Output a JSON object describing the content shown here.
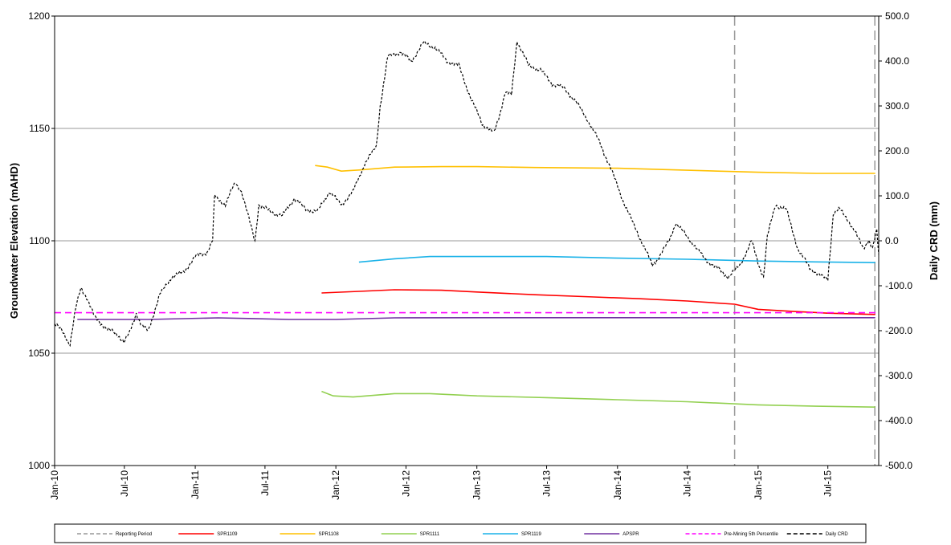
{
  "chart_data": {
    "type": "line",
    "title": "",
    "xlabel": "",
    "ylabel": "Groundwater Elevation (mAHD)",
    "y2label": "Daily CRD (mm)",
    "xlim": [
      "2010-01-01",
      "2015-11-10"
    ],
    "ylim": [
      1000,
      1200
    ],
    "y2lim": [
      -500,
      500
    ],
    "yticks": [
      "1000",
      "1050",
      "1100",
      "1150",
      "1200"
    ],
    "y2ticks": [
      "-500.0",
      "-400.0",
      "-300.0",
      "-200.0",
      "-100.0",
      "0.0",
      "100.0",
      "200.0",
      "300.0",
      "400.0",
      "500.0"
    ],
    "xticks": [
      {
        "label": "Jan-10",
        "date": "2010-01-01"
      },
      {
        "label": "Jul-10",
        "date": "2010-07-01"
      },
      {
        "label": "Jan-11",
        "date": "2011-01-01"
      },
      {
        "label": "Jul-11",
        "date": "2011-07-01"
      },
      {
        "label": "Jan-12",
        "date": "2012-01-01"
      },
      {
        "label": "Jul-12",
        "date": "2012-07-01"
      },
      {
        "label": "Jan-13",
        "date": "2013-01-01"
      },
      {
        "label": "Jul-13",
        "date": "2013-07-01"
      },
      {
        "label": "Jan-14",
        "date": "2014-01-01"
      },
      {
        "label": "Jul-14",
        "date": "2014-07-01"
      },
      {
        "label": "Jan-15",
        "date": "2015-01-01"
      },
      {
        "label": "Jul-15",
        "date": "2015-07-01"
      }
    ],
    "grid": "horizontal",
    "legend_position": "bottom",
    "reporting_period": [
      "2014-11-01",
      "2015-10-31"
    ],
    "series": [
      {
        "name": "Reporting Period",
        "color": "#999999",
        "style": "dashed",
        "axis": "left",
        "points": []
      },
      {
        "name": "SPR1109",
        "color": "#ff0000",
        "style": "solid",
        "axis": "left",
        "points": [
          [
            "2011-11-25",
            1076.8
          ],
          [
            "2012-03-01",
            1077.5
          ],
          [
            "2012-06-01",
            1078.2
          ],
          [
            "2012-10-01",
            1078.0
          ],
          [
            "2013-01-01",
            1077.2
          ],
          [
            "2013-06-01",
            1076.0
          ],
          [
            "2013-11-01",
            1075.0
          ],
          [
            "2014-03-01",
            1074.2
          ],
          [
            "2014-07-01",
            1073.2
          ],
          [
            "2014-11-01",
            1071.8
          ],
          [
            "2015-01-01",
            1069.5
          ],
          [
            "2015-04-01",
            1068.6
          ],
          [
            "2015-07-01",
            1067.8
          ],
          [
            "2015-11-01",
            1067.2
          ]
        ]
      },
      {
        "name": "SPR1108",
        "color": "#ffc000",
        "style": "solid",
        "axis": "left",
        "points": [
          [
            "2011-11-08",
            1133.5
          ],
          [
            "2011-12-10",
            1132.8
          ],
          [
            "2012-01-15",
            1131.0
          ],
          [
            "2012-03-01",
            1131.5
          ],
          [
            "2012-06-01",
            1132.8
          ],
          [
            "2012-10-01",
            1133.0
          ],
          [
            "2013-01-01",
            1133.0
          ],
          [
            "2013-06-01",
            1132.6
          ],
          [
            "2014-01-01",
            1132.3
          ],
          [
            "2014-07-01",
            1131.4
          ],
          [
            "2015-01-01",
            1130.5
          ],
          [
            "2015-06-01",
            1130.0
          ],
          [
            "2015-11-01",
            1130.0
          ]
        ]
      },
      {
        "name": "SPR1111",
        "color": "#92d050",
        "style": "solid",
        "axis": "left",
        "points": [
          [
            "2011-11-25",
            1033.0
          ],
          [
            "2011-12-25",
            1031.0
          ],
          [
            "2012-02-15",
            1030.5
          ],
          [
            "2012-06-01",
            1032.0
          ],
          [
            "2012-09-01",
            1032.0
          ],
          [
            "2013-01-01",
            1031.0
          ],
          [
            "2013-07-01",
            1030.2
          ],
          [
            "2014-01-01",
            1029.3
          ],
          [
            "2014-07-01",
            1028.4
          ],
          [
            "2015-01-01",
            1027.0
          ],
          [
            "2015-06-01",
            1026.4
          ],
          [
            "2015-11-01",
            1026.0
          ]
        ]
      },
      {
        "name": "SPR1119",
        "color": "#1ab2e8",
        "style": "solid",
        "axis": "left",
        "points": [
          [
            "2012-03-01",
            1090.5
          ],
          [
            "2012-06-01",
            1092.0
          ],
          [
            "2012-09-01",
            1093.0
          ],
          [
            "2013-01-01",
            1093.0
          ],
          [
            "2013-07-01",
            1093.0
          ],
          [
            "2014-01-01",
            1092.3
          ],
          [
            "2014-07-01",
            1091.8
          ],
          [
            "2015-01-01",
            1091.0
          ],
          [
            "2015-06-01",
            1090.6
          ],
          [
            "2015-11-01",
            1090.3
          ]
        ]
      },
      {
        "name": "APSPR",
        "color": "#7030a0",
        "style": "solid",
        "axis": "left",
        "points": [
          [
            "2010-03-01",
            1065.0
          ],
          [
            "2010-09-01",
            1065.0
          ],
          [
            "2011-03-01",
            1065.7
          ],
          [
            "2011-06-01",
            1065.4
          ],
          [
            "2011-09-01",
            1065.0
          ],
          [
            "2012-01-01",
            1065.0
          ],
          [
            "2012-06-01",
            1065.7
          ],
          [
            "2013-01-01",
            1065.8
          ],
          [
            "2014-01-01",
            1065.8
          ],
          [
            "2015-01-01",
            1065.8
          ],
          [
            "2015-11-01",
            1065.8
          ]
        ]
      },
      {
        "name": "Pre-Mining 5th Percentile",
        "color": "#ff00ff",
        "style": "dashed",
        "axis": "left",
        "points": [
          [
            "2010-01-01",
            1068.0
          ],
          [
            "2015-11-10",
            1068.0
          ]
        ]
      },
      {
        "name": "Daily CRD",
        "color": "#000000",
        "style": "dashed",
        "axis": "right",
        "points": [
          [
            "2010-01-01",
            -185
          ],
          [
            "2010-01-20",
            -200
          ],
          [
            "2010-02-10",
            -230
          ],
          [
            "2010-02-25",
            -150
          ],
          [
            "2010-03-10",
            -105
          ],
          [
            "2010-03-25",
            -125
          ],
          [
            "2010-04-15",
            -170
          ],
          [
            "2010-05-15",
            -195
          ],
          [
            "2010-06-15",
            -210
          ],
          [
            "2010-06-30",
            -225
          ],
          [
            "2010-07-15",
            -205
          ],
          [
            "2010-08-01",
            -160
          ],
          [
            "2010-08-15",
            -190
          ],
          [
            "2010-09-01",
            -200
          ],
          [
            "2010-10-01",
            -120
          ],
          [
            "2010-11-01",
            -80
          ],
          [
            "2010-12-01",
            -70
          ],
          [
            "2011-01-01",
            -35
          ],
          [
            "2011-02-01",
            -25
          ],
          [
            "2011-02-15",
            0
          ],
          [
            "2011-02-20",
            100
          ],
          [
            "2011-03-20",
            80
          ],
          [
            "2011-04-15",
            130
          ],
          [
            "2011-05-01",
            110
          ],
          [
            "2011-05-20",
            50
          ],
          [
            "2011-06-05",
            0
          ],
          [
            "2011-06-15",
            80
          ],
          [
            "2011-07-15",
            65
          ],
          [
            "2011-08-15",
            55
          ],
          [
            "2011-09-15",
            95
          ],
          [
            "2011-10-15",
            70
          ],
          [
            "2011-11-15",
            65
          ],
          [
            "2011-12-15",
            110
          ],
          [
            "2012-01-15",
            80
          ],
          [
            "2012-02-15",
            110
          ],
          [
            "2012-03-15",
            170
          ],
          [
            "2012-04-15",
            210
          ],
          [
            "2012-04-25",
            300
          ],
          [
            "2012-05-15",
            410
          ],
          [
            "2012-06-15",
            420
          ],
          [
            "2012-07-15",
            400
          ],
          [
            "2012-08-15",
            440
          ],
          [
            "2012-09-15",
            430
          ],
          [
            "2012-10-15",
            400
          ],
          [
            "2012-11-15",
            390
          ],
          [
            "2012-12-15",
            320
          ],
          [
            "2013-01-15",
            260
          ],
          [
            "2013-02-15",
            240
          ],
          [
            "2013-03-01",
            280
          ],
          [
            "2013-03-15",
            330
          ],
          [
            "2013-04-01",
            325
          ],
          [
            "2013-04-15",
            445
          ],
          [
            "2013-05-15",
            390
          ],
          [
            "2013-06-15",
            380
          ],
          [
            "2013-07-15",
            350
          ],
          [
            "2013-08-15",
            340
          ],
          [
            "2013-09-15",
            310
          ],
          [
            "2013-10-15",
            270
          ],
          [
            "2013-11-15",
            220
          ],
          [
            "2013-12-15",
            160
          ],
          [
            "2014-01-15",
            90
          ],
          [
            "2014-02-15",
            30
          ],
          [
            "2014-03-15",
            -20
          ],
          [
            "2014-04-01",
            -55
          ],
          [
            "2014-04-15",
            -40
          ],
          [
            "2014-05-15",
            0
          ],
          [
            "2014-06-01",
            40
          ],
          [
            "2014-06-20",
            20
          ],
          [
            "2014-07-15",
            -5
          ],
          [
            "2014-08-15",
            -40
          ],
          [
            "2014-09-15",
            -60
          ],
          [
            "2014-10-15",
            -80
          ],
          [
            "2014-11-15",
            -55
          ],
          [
            "2014-12-15",
            0
          ],
          [
            "2015-01-01",
            -50
          ],
          [
            "2015-01-15",
            -80
          ],
          [
            "2015-01-25",
            10
          ],
          [
            "2015-02-15",
            80
          ],
          [
            "2015-03-15",
            70
          ],
          [
            "2015-04-15",
            -20
          ],
          [
            "2015-05-15",
            -60
          ],
          [
            "2015-06-15",
            -80
          ],
          [
            "2015-07-01",
            -85
          ],
          [
            "2015-07-15",
            60
          ],
          [
            "2015-08-01",
            70
          ],
          [
            "2015-08-20",
            50
          ],
          [
            "2015-09-15",
            10
          ],
          [
            "2015-10-01",
            -15
          ],
          [
            "2015-10-15",
            0
          ],
          [
            "2015-10-25",
            -20
          ],
          [
            "2015-11-05",
            25
          ],
          [
            "2015-11-10",
            -30
          ]
        ]
      }
    ]
  }
}
